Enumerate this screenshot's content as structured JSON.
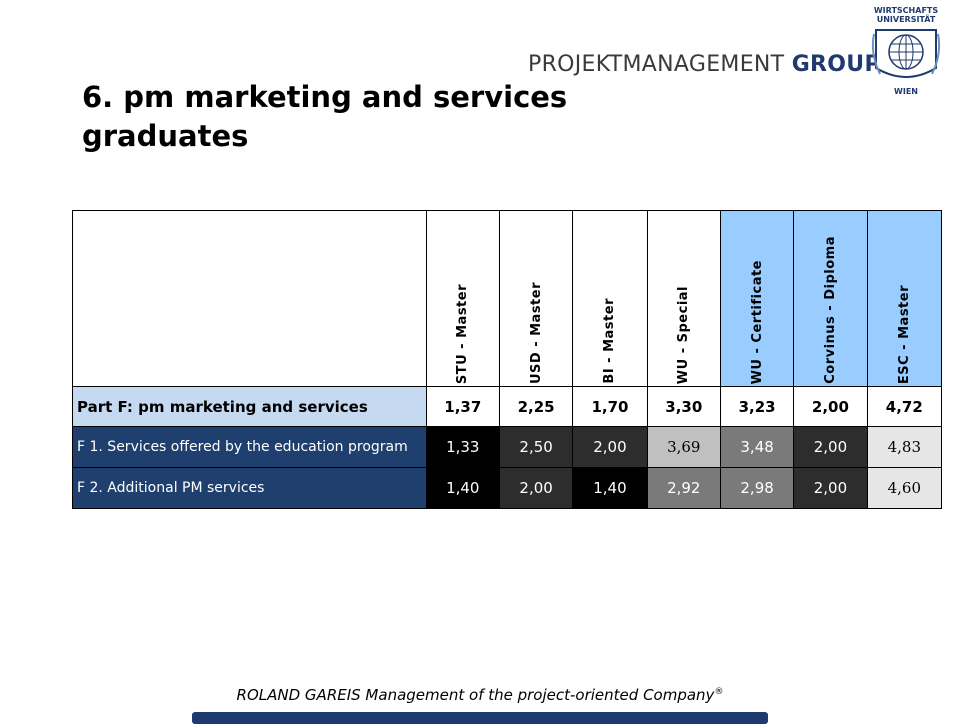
{
  "header": {
    "brand_part1": "PROJEKTMANAGEMENT",
    "brand_part2": "GROUP",
    "seal_top": "WIRTSCHAFTS UNIVERSITÄT",
    "seal_bottom": "WIEN"
  },
  "title": "6. pm marketing and services graduates",
  "table": {
    "columns": [
      "STU - Master",
      "USD - Master",
      "BI - Master",
      "WU - Special",
      "WU - Certificate",
      "Corvinus - Diploma",
      "ESC - Master"
    ],
    "highlighted_columns": [
      "WU - Certificate",
      "Corvinus - Diploma",
      "ESC - Master"
    ],
    "rows": [
      {
        "label": "Part F: pm marketing and services",
        "values": [
          "1,37",
          "2,25",
          "1,70",
          "3,30",
          "3,23",
          "2,00",
          "4,72"
        ]
      },
      {
        "label": "F 1. Services offered by the education program",
        "values": [
          "1,33",
          "2,50",
          "2,00",
          "3,69",
          "3,48",
          "2,00",
          "4,83"
        ]
      },
      {
        "label": "F 2. Additional PM services",
        "values": [
          "1,40",
          "2,00",
          "1,40",
          "2,92",
          "2,98",
          "2,00",
          "4,60"
        ]
      }
    ]
  },
  "footer": {
    "text": "ROLAND GAREIS Management of the project-oriented Company",
    "mark": "®"
  },
  "colors": {
    "header_blue": "#99ccff",
    "part_row": "#c5d9f1",
    "sub_row": "#1f3f6e",
    "footer_bar": "#1f3a6e"
  }
}
